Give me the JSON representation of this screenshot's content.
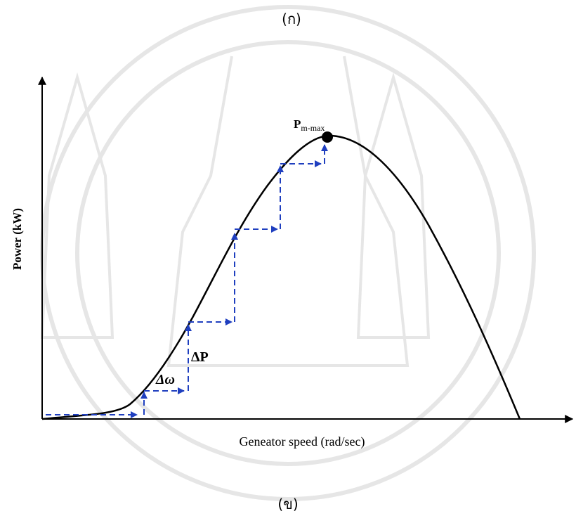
{
  "figure": {
    "top_label": "(ก)",
    "bottom_label": "(ข)",
    "y_axis_label": "Power (kW)",
    "x_axis_label": "Geneator speed (rad/sec)",
    "peak_label": {
      "main": "P",
      "sub": "m-max"
    },
    "delta_p_label": "ΔP",
    "delta_w_label": "Δω"
  }
}
